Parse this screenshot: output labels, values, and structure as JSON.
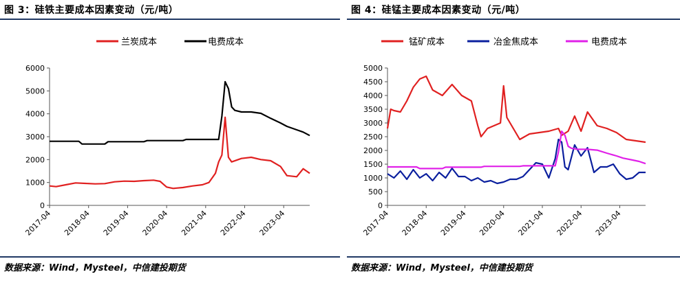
{
  "figures": [
    {
      "title": "图 3：硅铁主要成本因素变动（元/吨）",
      "source": "数据来源：Wind，Mysteel，中信建投期货"
    },
    {
      "title": "图 4：硅锰主要成本因素变动（元/吨）",
      "source": "数据来源：Wind，Mysteel，中信建投期货"
    }
  ],
  "chart_data": [
    {
      "type": "line",
      "title": "",
      "xlabel": "",
      "ylabel": "",
      "ylim": [
        0,
        6000
      ],
      "yticks": [
        0,
        1000,
        2000,
        3000,
        4000,
        5000,
        6000
      ],
      "x_range": [
        "2017-04",
        "2023-12"
      ],
      "x_ticks": [
        "2017-04",
        "2018-04",
        "2019-04",
        "2020-04",
        "2021-04",
        "2022-04",
        "2023-04"
      ],
      "legend_position": "top",
      "grid": false,
      "series": [
        {
          "name": "兰炭成本",
          "color": "#e02020",
          "x": [
            "2017-04",
            "2017-06",
            "2017-09",
            "2017-12",
            "2018-03",
            "2018-06",
            "2018-09",
            "2018-12",
            "2019-03",
            "2019-06",
            "2019-09",
            "2019-12",
            "2020-02",
            "2020-04",
            "2020-06",
            "2020-09",
            "2020-12",
            "2021-03",
            "2021-05",
            "2021-07",
            "2021-08",
            "2021-09",
            "2021-10",
            "2021-11",
            "2021-12",
            "2022-03",
            "2022-06",
            "2022-09",
            "2022-12",
            "2023-03",
            "2023-05",
            "2023-08",
            "2023-10",
            "2023-11",
            "2023-12"
          ],
          "values": [
            850,
            820,
            900,
            980,
            960,
            940,
            950,
            1030,
            1060,
            1050,
            1080,
            1100,
            1050,
            800,
            740,
            780,
            850,
            900,
            1000,
            1400,
            1900,
            2200,
            3850,
            2100,
            1900,
            2050,
            2100,
            2000,
            1950,
            1700,
            1300,
            1250,
            1600,
            1500,
            1400
          ]
        },
        {
          "name": "电费成本",
          "color": "#000000",
          "x": [
            "2017-04",
            "2018-01",
            "2018-02",
            "2018-09",
            "2018-10",
            "2019-09",
            "2019-10",
            "2020-09",
            "2020-10",
            "2021-08",
            "2021-09",
            "2021-10",
            "2021-11",
            "2021-12",
            "2022-01",
            "2022-03",
            "2022-06",
            "2022-09",
            "2022-12",
            "2023-03",
            "2023-05",
            "2023-08",
            "2023-10",
            "2023-12"
          ],
          "values": [
            2800,
            2800,
            2680,
            2680,
            2780,
            2780,
            2830,
            2830,
            2880,
            2880,
            3900,
            5400,
            5100,
            4300,
            4150,
            4080,
            4080,
            4020,
            3800,
            3600,
            3450,
            3300,
            3200,
            3050
          ]
        }
      ]
    },
    {
      "type": "line",
      "title": "",
      "xlabel": "",
      "ylabel": "",
      "ylim": [
        0,
        5000
      ],
      "yticks": [
        0,
        500,
        1000,
        1500,
        2000,
        2500,
        3000,
        3500,
        4000,
        4500,
        5000
      ],
      "x_range": [
        "2017-04",
        "2023-12"
      ],
      "x_ticks": [
        "2017-04",
        "2018-04",
        "2019-04",
        "2020-04",
        "2021-04",
        "2022-04",
        "2023-04"
      ],
      "legend_position": "top",
      "grid": false,
      "series": [
        {
          "name": "锰矿成本",
          "color": "#e02020",
          "x": [
            "2017-04",
            "2017-05",
            "2017-06",
            "2017-08",
            "2017-10",
            "2017-12",
            "2018-02",
            "2018-04",
            "2018-06",
            "2018-09",
            "2018-12",
            "2019-03",
            "2019-06",
            "2019-08",
            "2019-09",
            "2019-11",
            "2020-01",
            "2020-03",
            "2020-04",
            "2020-05",
            "2020-07",
            "2020-09",
            "2020-12",
            "2021-03",
            "2021-06",
            "2021-09",
            "2021-10",
            "2021-12",
            "2022-02",
            "2022-04",
            "2022-06",
            "2022-09",
            "2022-12",
            "2023-03",
            "2023-06",
            "2023-09",
            "2023-12"
          ],
          "values": [
            2800,
            3500,
            3450,
            3400,
            3800,
            4300,
            4600,
            4700,
            4200,
            4000,
            4400,
            4000,
            3800,
            2900,
            2500,
            2800,
            2900,
            3000,
            4350,
            3200,
            2800,
            2400,
            2600,
            2650,
            2700,
            2800,
            2550,
            2700,
            3250,
            2700,
            3400,
            2900,
            2800,
            2650,
            2400,
            2350,
            2300
          ]
        },
        {
          "name": "冶金焦成本",
          "color": "#0a1f9e",
          "x": [
            "2017-04",
            "2017-06",
            "2017-08",
            "2017-10",
            "2017-12",
            "2018-02",
            "2018-04",
            "2018-06",
            "2018-08",
            "2018-10",
            "2018-12",
            "2019-02",
            "2019-04",
            "2019-06",
            "2019-08",
            "2019-10",
            "2019-12",
            "2020-02",
            "2020-04",
            "2020-06",
            "2020-08",
            "2020-10",
            "2020-12",
            "2021-02",
            "2021-04",
            "2021-06",
            "2021-08",
            "2021-09",
            "2021-10",
            "2021-11",
            "2021-12",
            "2022-02",
            "2022-04",
            "2022-06",
            "2022-08",
            "2022-10",
            "2022-12",
            "2023-02",
            "2023-04",
            "2023-06",
            "2023-08",
            "2023-10",
            "2023-12"
          ],
          "values": [
            1150,
            1000,
            1250,
            950,
            1300,
            1000,
            1150,
            900,
            1200,
            1000,
            1350,
            1050,
            1050,
            900,
            1000,
            850,
            900,
            800,
            850,
            950,
            950,
            1050,
            1300,
            1550,
            1500,
            1000,
            1700,
            2400,
            2300,
            1400,
            1300,
            2200,
            1800,
            2100,
            1200,
            1400,
            1400,
            1500,
            1150,
            950,
            1000,
            1200,
            1200
          ]
        },
        {
          "name": "电费成本",
          "color": "#e020e8",
          "x": [
            "2017-04",
            "2018-01",
            "2018-02",
            "2018-09",
            "2018-10",
            "2019-09",
            "2019-10",
            "2020-09",
            "2020-10",
            "2021-08",
            "2021-09",
            "2021-10",
            "2021-11",
            "2021-12",
            "2022-01",
            "2022-03",
            "2022-06",
            "2022-09",
            "2022-12",
            "2023-03",
            "2023-05",
            "2023-08",
            "2023-10",
            "2023-12"
          ],
          "values": [
            1400,
            1400,
            1340,
            1340,
            1390,
            1390,
            1420,
            1420,
            1440,
            1440,
            1950,
            2700,
            2550,
            2150,
            2080,
            2040,
            2040,
            2010,
            1900,
            1800,
            1720,
            1650,
            1600,
            1520
          ]
        }
      ]
    }
  ]
}
